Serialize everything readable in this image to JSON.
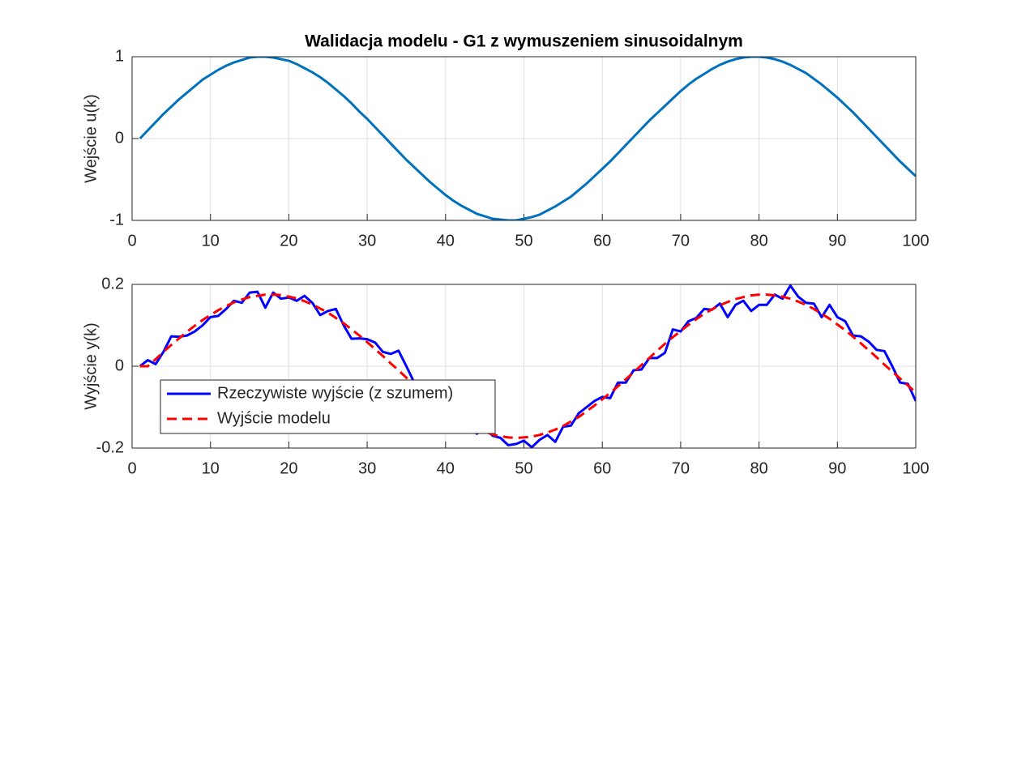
{
  "chart_data": [
    {
      "type": "line",
      "title": "Walidacja modelu - G1 z wymuszeniem sinusoidalnym",
      "ylabel": "Wejście u(k)",
      "x": [
        1,
        2,
        3,
        4,
        5,
        6,
        7,
        8,
        9,
        10,
        11,
        12,
        13,
        14,
        15,
        16,
        17,
        18,
        19,
        20,
        21,
        22,
        23,
        24,
        25,
        26,
        27,
        28,
        29,
        30,
        31,
        32,
        33,
        34,
        35,
        36,
        37,
        38,
        39,
        40,
        41,
        42,
        43,
        44,
        45,
        46,
        47,
        48,
        49,
        50,
        51,
        52,
        53,
        54,
        55,
        56,
        57,
        58,
        59,
        60,
        61,
        62,
        63,
        64,
        65,
        66,
        67,
        68,
        69,
        70,
        71,
        72,
        73,
        74,
        75,
        76,
        77,
        78,
        79,
        80,
        81,
        82,
        83,
        84,
        85,
        86,
        87,
        88,
        89,
        90,
        91,
        92,
        93,
        94,
        95,
        96,
        97,
        98,
        99,
        100
      ],
      "series": [
        {
          "color": "#0072BD",
          "style": "solid",
          "values": [
            0,
            0.1,
            0.2,
            0.3,
            0.39,
            0.48,
            0.56,
            0.64,
            0.72,
            0.78,
            0.84,
            0.89,
            0.93,
            0.96,
            0.99,
            1.0,
            1.0,
            0.99,
            0.97,
            0.95,
            0.91,
            0.86,
            0.81,
            0.75,
            0.68,
            0.6,
            0.52,
            0.43,
            0.33,
            0.24,
            0.14,
            0.04,
            -0.06,
            -0.16,
            -0.26,
            -0.35,
            -0.44,
            -0.53,
            -0.61,
            -0.69,
            -0.76,
            -0.82,
            -0.87,
            -0.92,
            -0.95,
            -0.98,
            -0.99,
            -1.0,
            -1.0,
            -0.98,
            -0.96,
            -0.93,
            -0.88,
            -0.83,
            -0.77,
            -0.71,
            -0.63,
            -0.55,
            -0.46,
            -0.37,
            -0.28,
            -0.18,
            -0.08,
            0.02,
            0.12,
            0.22,
            0.31,
            0.4,
            0.49,
            0.58,
            0.66,
            0.73,
            0.79,
            0.85,
            0.9,
            0.94,
            0.97,
            0.99,
            1.0,
            1.0,
            0.99,
            0.97,
            0.94,
            0.9,
            0.85,
            0.8,
            0.73,
            0.66,
            0.58,
            0.5,
            0.41,
            0.32,
            0.22,
            0.12,
            0.02,
            -0.08,
            -0.18,
            -0.28,
            -0.37,
            -0.46
          ]
        }
      ],
      "xlim": [
        0,
        100
      ],
      "xticks": [
        0,
        10,
        20,
        30,
        40,
        50,
        60,
        70,
        80,
        90,
        100
      ],
      "ylim": [
        -1,
        1
      ],
      "yticks": [
        -1,
        0,
        1
      ],
      "grid": true
    },
    {
      "type": "line",
      "ylabel": "Wyjście y(k)",
      "x": [
        1,
        2,
        3,
        4,
        5,
        6,
        7,
        8,
        9,
        10,
        11,
        12,
        13,
        14,
        15,
        16,
        17,
        18,
        19,
        20,
        21,
        22,
        23,
        24,
        25,
        26,
        27,
        28,
        29,
        30,
        31,
        32,
        33,
        34,
        35,
        36,
        37,
        38,
        39,
        40,
        41,
        42,
        43,
        44,
        45,
        46,
        47,
        48,
        49,
        50,
        51,
        52,
        53,
        54,
        55,
        56,
        57,
        58,
        59,
        60,
        61,
        62,
        63,
        64,
        65,
        66,
        67,
        68,
        69,
        70,
        71,
        72,
        73,
        74,
        75,
        76,
        77,
        78,
        79,
        80,
        81,
        82,
        83,
        84,
        85,
        86,
        87,
        88,
        89,
        90,
        91,
        92,
        93,
        94,
        95,
        96,
        97,
        98,
        99,
        100
      ],
      "series": [
        {
          "name": "Rzeczywiste wyjście (z szumem)",
          "color": "#0000FF",
          "style": "solid",
          "values": [
            0,
            0.015,
            0.005,
            0.035,
            0.073,
            0.072,
            0.075,
            0.085,
            0.1,
            0.12,
            0.123,
            0.14,
            0.16,
            0.155,
            0.18,
            0.182,
            0.143,
            0.18,
            0.165,
            0.168,
            0.16,
            0.172,
            0.155,
            0.125,
            0.135,
            0.14,
            0.1,
            0.067,
            0.068,
            0.066,
            0.058,
            0.035,
            0.03,
            0.038,
            0,
            -0.04,
            -0.06,
            -0.08,
            -0.1,
            -0.12,
            -0.13,
            -0.14,
            -0.15,
            -0.165,
            -0.15,
            -0.17,
            -0.175,
            -0.193,
            -0.19,
            -0.182,
            -0.198,
            -0.18,
            -0.168,
            -0.185,
            -0.148,
            -0.145,
            -0.115,
            -0.1,
            -0.085,
            -0.075,
            -0.078,
            -0.04,
            -0.04,
            -0.01,
            -0.008,
            0.02,
            0.02,
            0.033,
            0.09,
            0.085,
            0.11,
            0.118,
            0.14,
            0.138,
            0.153,
            0.12,
            0.15,
            0.16,
            0.135,
            0.15,
            0.15,
            0.175,
            0.165,
            0.197,
            0.17,
            0.155,
            0.153,
            0.12,
            0.15,
            0.12,
            0.11,
            0.075,
            0.073,
            0.06,
            0.04,
            0.037,
            0,
            -0.04,
            -0.043,
            -0.085
          ]
        },
        {
          "name": "Wyjście modelu",
          "color": "#FF0000",
          "style": "dashed",
          "values": [
            0,
            0,
            0.017,
            0.035,
            0.052,
            0.068,
            0.084,
            0.099,
            0.113,
            0.125,
            0.137,
            0.147,
            0.156,
            0.163,
            0.169,
            0.172,
            0.175,
            0.175,
            0.174,
            0.17,
            0.166,
            0.159,
            0.151,
            0.141,
            0.131,
            0.118,
            0.105,
            0.09,
            0.075,
            0.059,
            0.042,
            0.025,
            0.007,
            -0.01,
            -0.028,
            -0.045,
            -0.061,
            -0.078,
            -0.093,
            -0.107,
            -0.12,
            -0.132,
            -0.143,
            -0.153,
            -0.16,
            -0.167,
            -0.171,
            -0.174,
            -0.175,
            -0.174,
            -0.172,
            -0.168,
            -0.162,
            -0.155,
            -0.146,
            -0.135,
            -0.124,
            -0.11,
            -0.096,
            -0.081,
            -0.065,
            -0.049,
            -0.032,
            -0.015,
            0.003,
            0.02,
            0.038,
            0.055,
            0.071,
            0.086,
            0.101,
            0.115,
            0.128,
            0.139,
            0.149,
            0.157,
            0.164,
            0.169,
            0.173,
            0.175,
            0.175,
            0.173,
            0.17,
            0.165,
            0.158,
            0.15,
            0.14,
            0.128,
            0.116,
            0.102,
            0.088,
            0.072,
            0.056,
            0.039,
            0.022,
            0.004,
            -0.013,
            -0.03,
            -0.047,
            -0.064
          ]
        }
      ],
      "xlim": [
        0,
        100
      ],
      "xticks": [
        0,
        10,
        20,
        30,
        40,
        50,
        60,
        70,
        80,
        90,
        100
      ],
      "ylim": [
        -0.2,
        0.2
      ],
      "yticks": [
        -0.2,
        0,
        0.2
      ],
      "grid": true,
      "legend": "southwest"
    }
  ]
}
